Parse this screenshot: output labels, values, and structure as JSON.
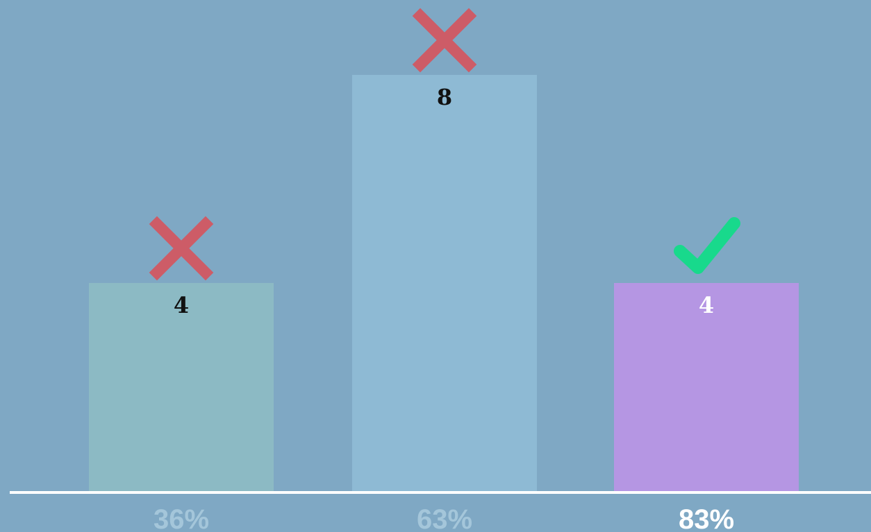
{
  "chart_data": {
    "type": "bar",
    "categories": [
      "36%",
      "63%",
      "83%"
    ],
    "values": [
      4,
      8,
      4
    ],
    "value_labels": [
      "4",
      "8",
      "4"
    ],
    "markers": [
      "cross",
      "cross",
      "check"
    ],
    "ylim": [
      0,
      8
    ],
    "grid": false,
    "highlighted_category": "83%"
  },
  "colors": {
    "background": "#7fa8c4",
    "bars": [
      "#8cbac4",
      "#8ebad4",
      "#b596e3"
    ],
    "value_label": [
      "#111111",
      "#111111",
      "#ffffff"
    ],
    "tick_label": [
      "#a4c6da",
      "#a4c6da",
      "#ffffff"
    ],
    "axis": "#ffffff",
    "cross": "#cd5c67",
    "check": "#18d98c"
  }
}
